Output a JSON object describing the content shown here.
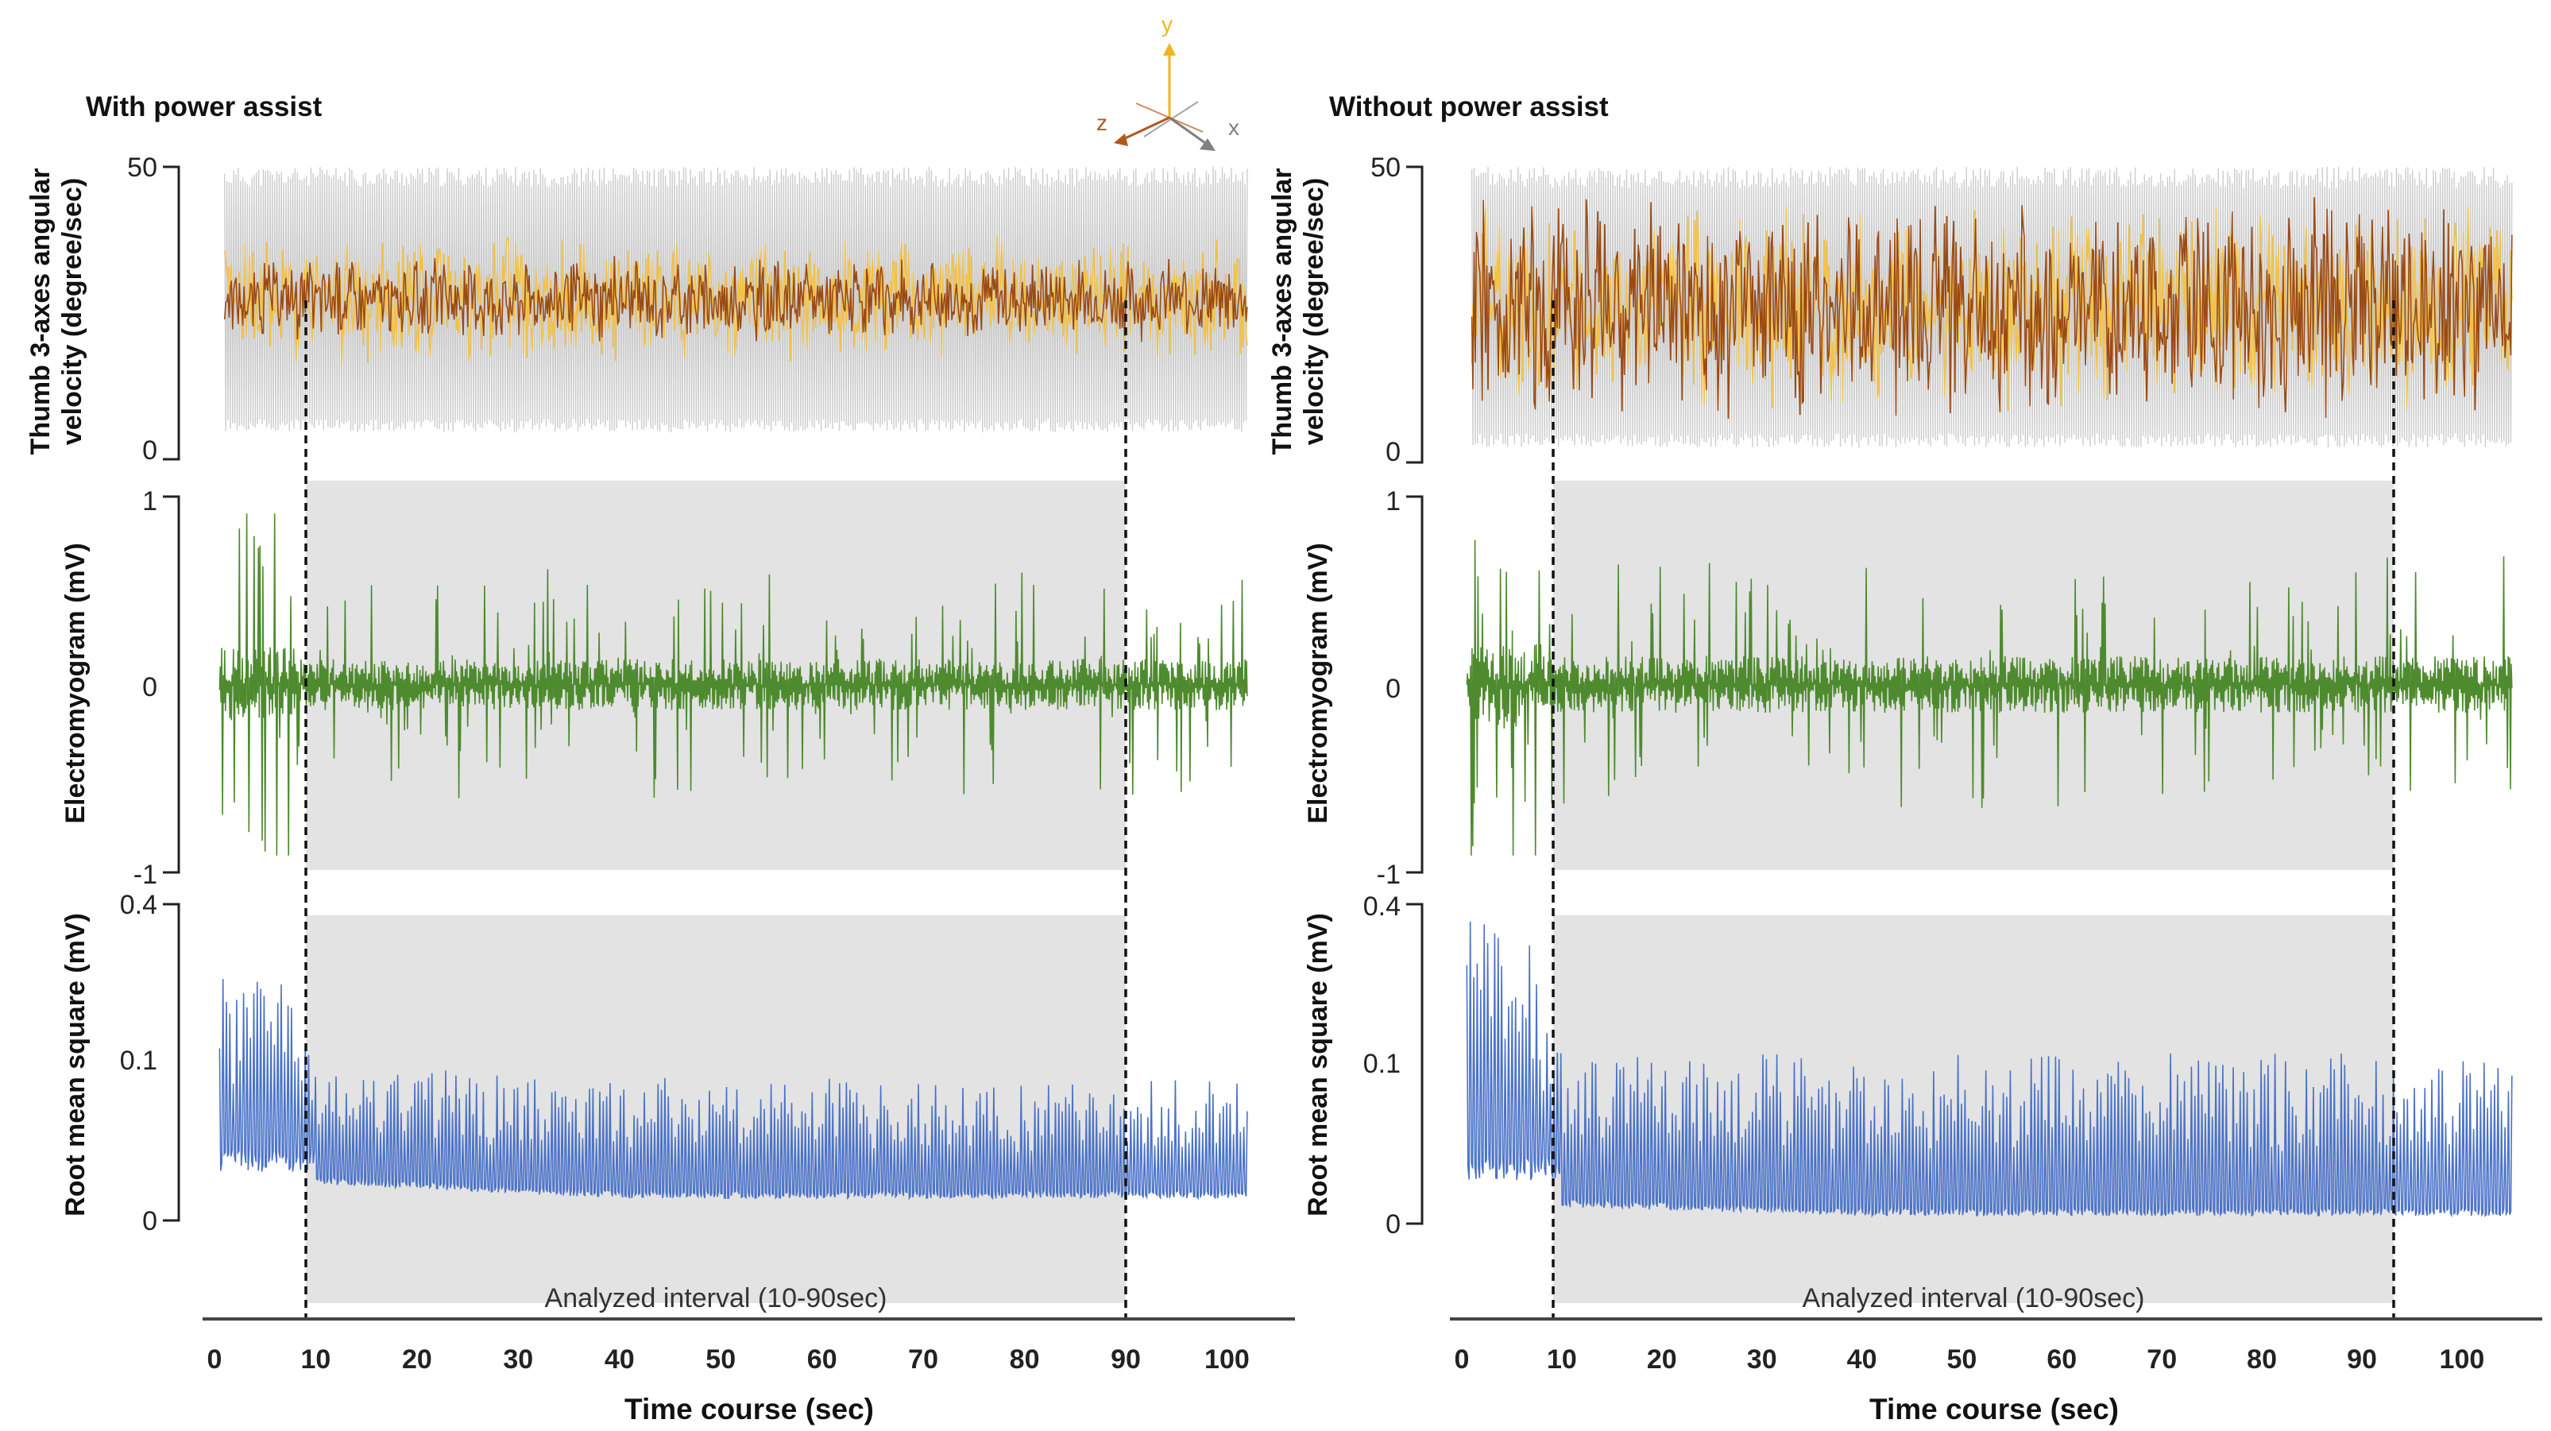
{
  "chart_data": {
    "type": "line",
    "description_units": "amplitude traces over time",
    "shared": {
      "xlabel": "Time course (sec)",
      "xticks": [
        0,
        10,
        20,
        30,
        40,
        50,
        60,
        70,
        80,
        90,
        100
      ],
      "xlim": [
        0,
        103
      ],
      "analyzed_interval": [
        10,
        90
      ],
      "analyzed_interval_label": "Analyzed interval (10-90sec)",
      "axes_legend": {
        "x": "x",
        "y": "y",
        "z": "z",
        "x_color": "#808080",
        "y_color": "#f0b41e",
        "z_color": "#b4581e"
      }
    },
    "panels": [
      {
        "title": "With power assist",
        "duration": 102,
        "cut_right": 90,
        "subplots": [
          {
            "ylabel_line1": "Thumb 3-axes angular",
            "ylabel_line2": "velocity (degree/sec)",
            "ylim": [
              0,
              50
            ],
            "ytick_labels": [
              "50",
              "0"
            ],
            "series": [
              {
                "name": "x-axis",
                "color": "#c8c8c8",
                "baseline": 26,
                "amplitude": 24
              },
              {
                "name": "y-axis",
                "color": "#f2c244",
                "baseline": 26,
                "amplitude": 12
              },
              {
                "name": "z-axis",
                "color": "#9b4a14",
                "baseline": 26,
                "amplitude": 8
              }
            ]
          },
          {
            "ylabel": "Electromyogram (mV)",
            "ylim": [
              -1,
              1
            ],
            "ytick_labels": [
              "1",
              "0",
              "-1"
            ],
            "series": [
              {
                "name": "EMG",
                "color": "#4e8a2e",
                "baseline": 0,
                "amplitude": 0.45
              }
            ]
          },
          {
            "ylabel": "Root mean square (mV)",
            "ylim": [
              0,
              0.4
            ],
            "ytick_labels": [
              "0.4",
              "0.1",
              "0"
            ],
            "series": [
              {
                "name": "RMS",
                "color": "#4a72c8",
                "baseline": 0.05,
                "amplitude": 0.15
              }
            ]
          }
        ]
      },
      {
        "title": "Without power assist",
        "duration": 105,
        "cut_right": 92,
        "subplots": [
          {
            "ylabel_line1": "Thumb 3-axes angular",
            "ylabel_line2": "velocity (degree/sec)",
            "ylim": [
              0,
              50
            ],
            "ytick_labels": [
              "50",
              "0"
            ],
            "series": [
              {
                "name": "x-axis",
                "color": "#c8c8c8",
                "baseline": 26,
                "amplitude": 24
              },
              {
                "name": "y-axis",
                "color": "#f2c244",
                "baseline": 26,
                "amplitude": 18
              },
              {
                "name": "z-axis",
                "color": "#9b4a14",
                "baseline": 26,
                "amplitude": 20
              }
            ]
          },
          {
            "ylabel": "Electromyogram (mV)",
            "ylim": [
              -1,
              1
            ],
            "ytick_labels": [
              "1",
              "0",
              "-1"
            ],
            "series": [
              {
                "name": "EMG",
                "color": "#4e8a2e",
                "baseline": 0,
                "amplitude": 0.5
              }
            ]
          },
          {
            "ylabel": "Root mean square (mV)",
            "ylim": [
              0,
              0.4
            ],
            "ytick_labels": [
              "0.4",
              "0.1",
              "0"
            ],
            "series": [
              {
                "name": "RMS",
                "color": "#4a72c8",
                "baseline": 0.03,
                "amplitude": 0.2
              }
            ]
          }
        ]
      }
    ]
  }
}
